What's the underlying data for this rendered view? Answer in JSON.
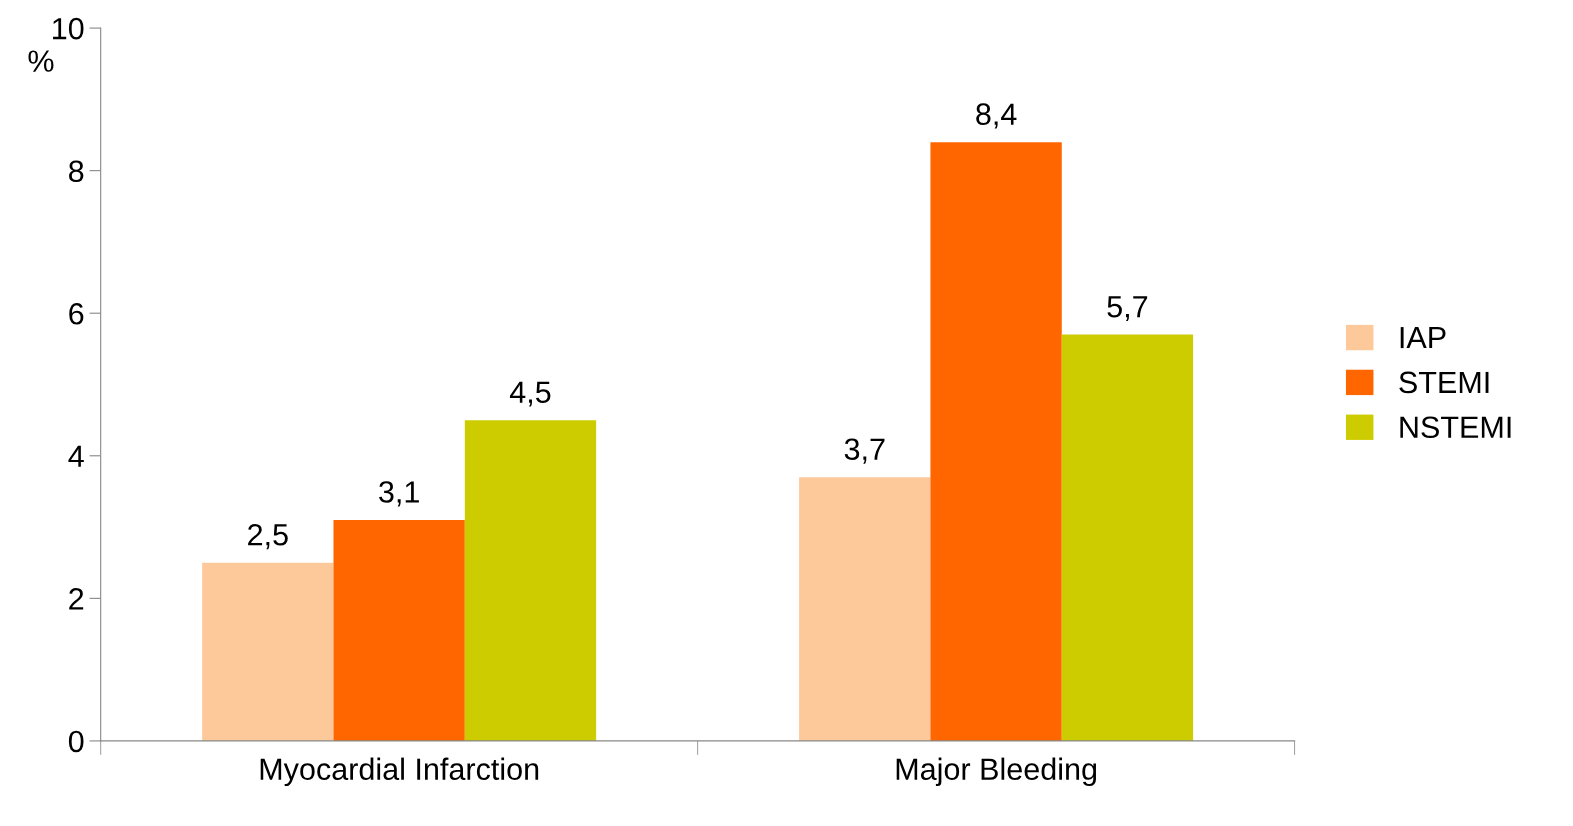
{
  "chart_data": {
    "type": "bar",
    "ylabel": "%",
    "categories": [
      "Myocardial Infarction",
      "Major Bleeding"
    ],
    "series": [
      {
        "name": "IAP",
        "color": "#fdc99b",
        "values": [
          2.5,
          3.7
        ],
        "value_labels": [
          "2,5",
          "3,7"
        ]
      },
      {
        "name": "STEMI",
        "color": "#ff6600",
        "values": [
          3.1,
          8.4
        ],
        "value_labels": [
          "3,1",
          "8,4"
        ]
      },
      {
        "name": "NSTEMI",
        "color": "#cccc00",
        "values": [
          4.5,
          5.7
        ],
        "value_labels": [
          "4,5",
          "5,7"
        ]
      }
    ],
    "ylim": [
      0,
      10
    ],
    "yticks": [
      0,
      2,
      4,
      6,
      8,
      10
    ],
    "grid": false,
    "legend": "right"
  }
}
